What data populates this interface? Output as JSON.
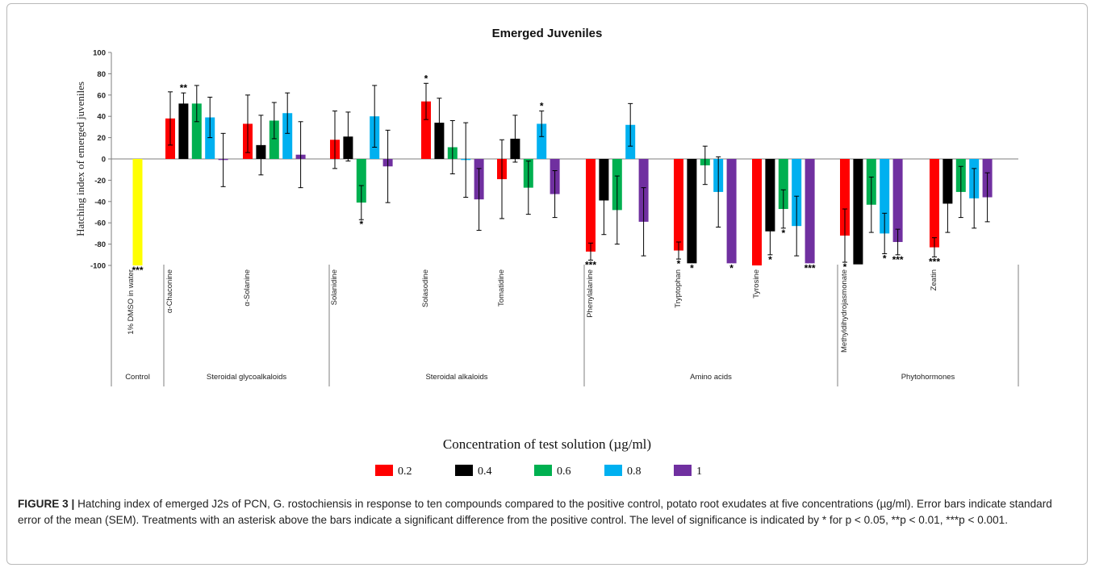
{
  "chart_data": {
    "type": "bar",
    "title": "Emerged Juveniles",
    "ylabel": "Hatching index of emerged juveniles",
    "xlabel": "Concentration of test solution (µg/ml)",
    "ylim": [
      -100,
      100
    ],
    "yticks": [
      100,
      80,
      60,
      40,
      20,
      0,
      -20,
      -40,
      -60,
      -80,
      -100
    ],
    "grid": false,
    "legend_position": "bottom",
    "legend": [
      {
        "label": "0.2",
        "color": "#ff0000"
      },
      {
        "label": "0.4",
        "color": "#000000"
      },
      {
        "label": "0.6",
        "color": "#00b050"
      },
      {
        "label": "0.8",
        "color": "#00b0f0"
      },
      {
        "label": "1",
        "color": "#7030a0"
      }
    ],
    "groups": [
      {
        "name": "Control",
        "compounds": [
          {
            "name": "1% DMSO in water",
            "bars": [
              {
                "value": -100,
                "err": 0,
                "sig": "***",
                "color": "#ffff00"
              }
            ]
          }
        ]
      },
      {
        "name": "Steroidal glycoalkaloids",
        "compounds": [
          {
            "name": "α-Chaconine",
            "bars": [
              {
                "value": 38,
                "err": 25,
                "sig": ""
              },
              {
                "value": 52,
                "err": 10,
                "sig": "**"
              },
              {
                "value": 52,
                "err": 17,
                "sig": ""
              },
              {
                "value": 39,
                "err": 19,
                "sig": ""
              },
              {
                "value": -1,
                "err": 25,
                "sig": ""
              }
            ]
          },
          {
            "name": "α-Solanine",
            "bars": [
              {
                "value": 33,
                "err": 27,
                "sig": ""
              },
              {
                "value": 13,
                "err": 28,
                "sig": ""
              },
              {
                "value": 36,
                "err": 17,
                "sig": ""
              },
              {
                "value": 43,
                "err": 19,
                "sig": ""
              },
              {
                "value": 4,
                "err": 31,
                "sig": ""
              }
            ]
          }
        ]
      },
      {
        "name": "Steroidal alkaloids",
        "compounds": [
          {
            "name": "Solanidine",
            "bars": [
              {
                "value": 18,
                "err": 27,
                "sig": ""
              },
              {
                "value": 21,
                "err": 23,
                "sig": ""
              },
              {
                "value": -41,
                "err": 16,
                "sig": "*"
              },
              {
                "value": 40,
                "err": 29,
                "sig": ""
              },
              {
                "value": -7,
                "err": 34,
                "sig": ""
              }
            ]
          },
          {
            "name": "Solasodine",
            "bars": [
              {
                "value": 54,
                "err": 17,
                "sig": "*"
              },
              {
                "value": 34,
                "err": 23,
                "sig": ""
              },
              {
                "value": 11,
                "err": 25,
                "sig": ""
              },
              {
                "value": -1,
                "err": 35,
                "sig": ""
              },
              {
                "value": -38,
                "err": 29,
                "sig": ""
              }
            ]
          },
          {
            "name": "Tomatidine",
            "bars": [
              {
                "value": -19,
                "err": 37,
                "sig": ""
              },
              {
                "value": 19,
                "err": 22,
                "sig": ""
              },
              {
                "value": -27,
                "err": 25,
                "sig": ""
              },
              {
                "value": 33,
                "err": 12,
                "sig": "*"
              },
              {
                "value": -33,
                "err": 22,
                "sig": ""
              }
            ]
          }
        ]
      },
      {
        "name": "Amino acids",
        "compounds": [
          {
            "name": "Phenylalanine",
            "bars": [
              {
                "value": -87,
                "err": 8,
                "sig": "***"
              },
              {
                "value": -39,
                "err": 32,
                "sig": ""
              },
              {
                "value": -48,
                "err": 32,
                "sig": ""
              },
              {
                "value": 32,
                "err": 20,
                "sig": ""
              },
              {
                "value": -59,
                "err": 32,
                "sig": ""
              }
            ]
          },
          {
            "name": "Tryptophan",
            "bars": [
              {
                "value": -86,
                "err": 8,
                "sig": "*"
              },
              {
                "value": -98,
                "err": 0,
                "sig": "*"
              },
              {
                "value": -6,
                "err": 18,
                "sig": ""
              },
              {
                "value": -31,
                "err": 33,
                "sig": ""
              },
              {
                "value": -98,
                "err": 0,
                "sig": "*"
              }
            ]
          },
          {
            "name": "Tyrosine",
            "bars": [
              {
                "value": -100,
                "err": 0,
                "sig": ""
              },
              {
                "value": -68,
                "err": 22,
                "sig": "*"
              },
              {
                "value": -47,
                "err": 18,
                "sig": "*"
              },
              {
                "value": -63,
                "err": 28,
                "sig": ""
              },
              {
                "value": -98,
                "err": 0,
                "sig": "***"
              }
            ]
          }
        ]
      },
      {
        "name": "Phytohormones",
        "compounds": [
          {
            "name": "Methyldihydrojasmonate",
            "bars": [
              {
                "value": -72,
                "err": 25,
                "sig": "*"
              },
              {
                "value": -99,
                "err": 0,
                "sig": ""
              },
              {
                "value": -43,
                "err": 26,
                "sig": ""
              },
              {
                "value": -70,
                "err": 19,
                "sig": "*"
              },
              {
                "value": -78,
                "err": 12,
                "sig": "***"
              }
            ]
          },
          {
            "name": "Zeatin",
            "bars": [
              {
                "value": -83,
                "err": 9,
                "sig": "***"
              },
              {
                "value": -42,
                "err": 27,
                "sig": ""
              },
              {
                "value": -31,
                "err": 24,
                "sig": ""
              },
              {
                "value": -37,
                "err": 28,
                "sig": ""
              },
              {
                "value": -36,
                "err": 23,
                "sig": ""
              }
            ]
          }
        ]
      }
    ]
  },
  "caption": {
    "label": "FIGURE 3 |",
    "text": "Hatching index of emerged J2s of PCN, G. rostochiensis in response to ten compounds compared to the positive control, potato root exudates at five concentrations (µg/ml). Error bars indicate standard error of the mean (SEM). Treatments with an asterisk above the bars indicate a significant difference from the positive control. The level of significance is indicated by * for p < 0.05, **p < 0.01, ***p < 0.001."
  }
}
